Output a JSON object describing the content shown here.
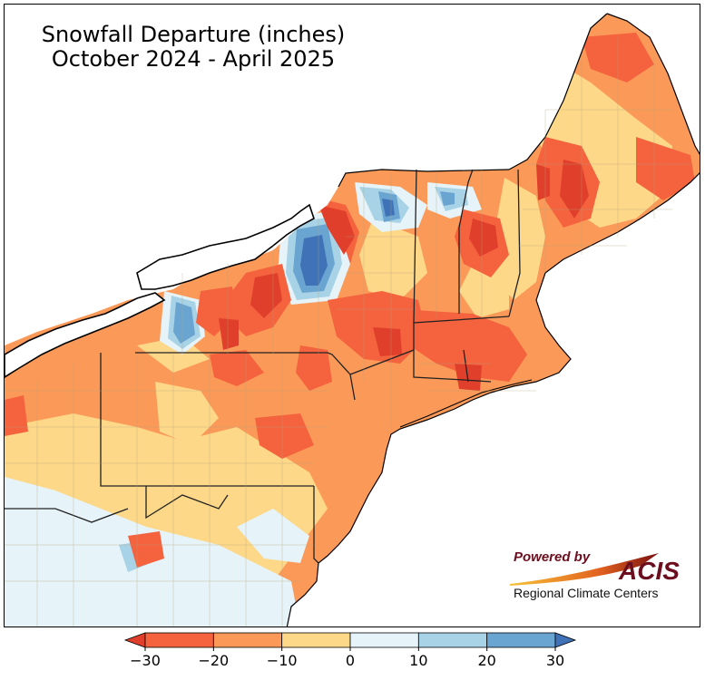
{
  "title": {
    "line1": "Snowfall Departure (inches)",
    "line2": "October 2024 - April 2025"
  },
  "logo": {
    "powered_by": "Powered by",
    "acis": "ACIS",
    "subtitle": "Regional Climate Centers"
  },
  "colorbar": {
    "ticks": [
      "−30",
      "−20",
      "−10",
      "0",
      "10",
      "20",
      "30"
    ],
    "bins": [
      {
        "from": -30,
        "to": -20,
        "color": "#f4623e"
      },
      {
        "from": -20,
        "to": -10,
        "color": "#fb9a58"
      },
      {
        "from": -10,
        "to": 0,
        "color": "#fdd889"
      },
      {
        "from": 0,
        "to": 10,
        "color": "#e6f3f8"
      },
      {
        "from": 10,
        "to": 20,
        "color": "#a8d2e6"
      },
      {
        "from": 20,
        "to": 30,
        "color": "#6aa5d2"
      }
    ],
    "under_color": "#e0402b",
    "over_color": "#3f72b6"
  },
  "map_colors": {
    "lake": "#ffffff",
    "ocean": "#ffffff",
    "border": "#222222"
  }
}
